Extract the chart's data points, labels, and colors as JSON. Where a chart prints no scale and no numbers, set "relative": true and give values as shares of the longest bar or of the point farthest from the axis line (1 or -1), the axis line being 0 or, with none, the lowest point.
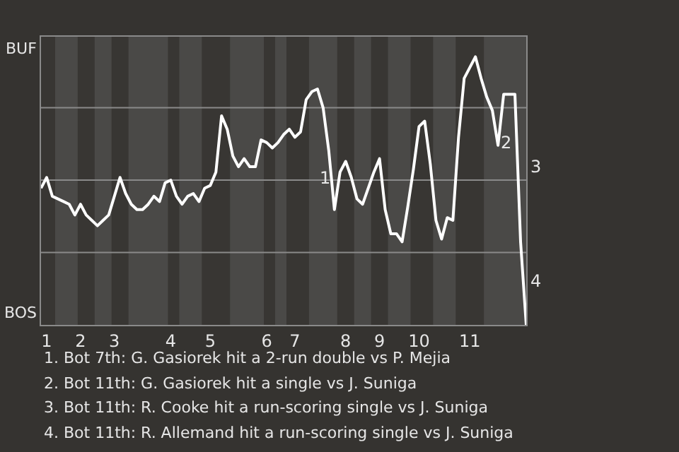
{
  "chart_data": {
    "type": "line",
    "relative": true,
    "categories": [
      null,
      "1",
      null,
      null,
      null,
      null,
      null,
      "2",
      null,
      null,
      null,
      null,
      null,
      "3",
      null,
      null,
      null,
      null,
      null,
      null,
      null,
      null,
      null,
      "4",
      null,
      null,
      null,
      null,
      null,
      null,
      "5",
      null,
      null,
      null,
      null,
      null,
      null,
      null,
      null,
      null,
      "6",
      null,
      null,
      null,
      null,
      "7",
      null,
      null,
      null,
      null,
      null,
      null,
      null,
      null,
      "8",
      null,
      null,
      null,
      null,
      null,
      "9",
      null,
      null,
      null,
      null,
      null,
      null,
      "10",
      null,
      null,
      null,
      null,
      null,
      null,
      null,
      null,
      "11",
      null,
      null,
      null,
      null,
      null,
      null,
      null,
      null,
      null,
      null
    ],
    "series": [
      {
        "color": "#ffffff",
        "values": [
          0.51,
          0.55,
          0.48,
          0.47,
          0.46,
          0.45,
          0.41,
          0.45,
          0.41,
          0.39,
          0.37,
          0.39,
          0.41,
          0.48,
          0.55,
          0.49,
          0.45,
          0.43,
          0.43,
          0.45,
          0.48,
          0.46,
          0.53,
          0.54,
          0.48,
          0.45,
          0.48,
          0.49,
          0.46,
          0.51,
          0.52,
          0.57,
          0.78,
          0.73,
          0.63,
          0.59,
          0.62,
          0.59,
          0.59,
          0.69,
          0.68,
          0.66,
          0.68,
          0.71,
          0.73,
          0.7,
          0.72,
          0.84,
          0.87,
          0.88,
          0.81,
          0.65,
          0.43,
          0.57,
          0.61,
          0.55,
          0.47,
          0.45,
          0.51,
          0.57,
          0.62,
          0.43,
          0.34,
          0.34,
          0.31,
          0.44,
          0.58,
          0.74,
          0.76,
          0.6,
          0.39,
          0.32,
          0.4,
          0.39,
          0.7,
          0.92,
          0.96,
          1.0,
          0.92,
          0.85,
          0.8,
          0.67,
          0.86,
          0.86,
          0.86,
          0.31,
          0.0
        ],
        "line_style": "solid"
      }
    ],
    "grid": false,
    "marker": "none",
    "ref_lines": [
      {
        "axis": "y",
        "value": 0.27,
        "color": "#8a8a8a"
      },
      {
        "axis": "y",
        "value": 0.54,
        "color": "#8a8a8a"
      },
      {
        "axis": "y",
        "value": 0.81,
        "color": "#8a8a8a"
      }
    ],
    "annotations": [
      "BUF",
      "BOS",
      "1",
      "2",
      "3",
      "4",
      "1. Bot 7th: G. Gasiorek hit a 2-run double vs P. Mejia",
      "2. Bot 11th: G. Gasiorek hit a single vs J. Suniga",
      "3. Bot 11th: R. Cooke hit a run-scoring single vs J. Suniga",
      "4. Bot 11th: R. Allemand hit a run-scoring single vs J. Suniga"
    ]
  }
}
